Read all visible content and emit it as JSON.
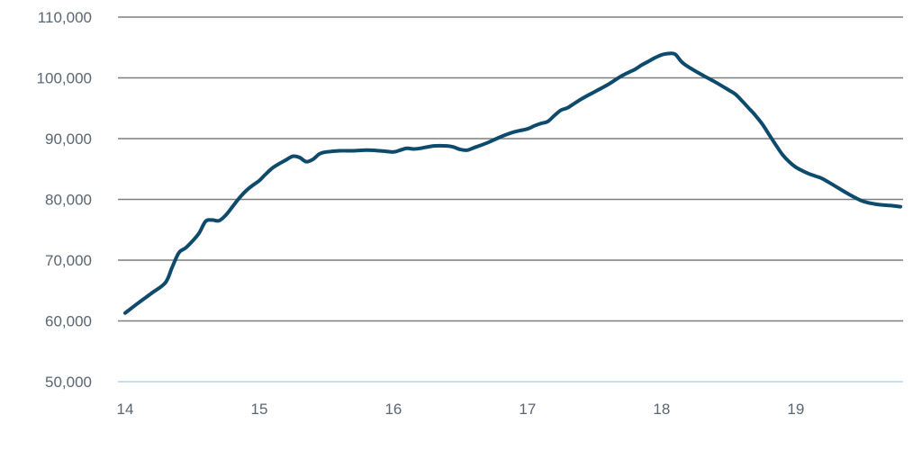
{
  "chart_data": {
    "type": "line",
    "title": "",
    "xlabel": "",
    "ylabel": "",
    "x_ticks": [
      14,
      15,
      16,
      17,
      18,
      19
    ],
    "x_tick_labels": [
      "14",
      "15",
      "16",
      "17",
      "18",
      "19"
    ],
    "y_ticks": [
      50000,
      60000,
      70000,
      80000,
      90000,
      100000,
      110000
    ],
    "y_tick_labels": [
      "50,000",
      "60,000",
      "70,000",
      "80,000",
      "90,000",
      "100,000",
      "110,000"
    ],
    "xlim": [
      14,
      19.8
    ],
    "ylim": [
      50000,
      110000
    ],
    "grid": "horizontal",
    "legend": "none",
    "colors": {
      "line": "#0d4a6b",
      "grid": "#7d7d7d",
      "baseline": "#b9d2e3",
      "text": "#5a6672"
    },
    "series": [
      {
        "x": [
          14.0,
          14.1,
          14.2,
          14.3,
          14.35,
          14.4,
          14.45,
          14.5,
          14.55,
          14.6,
          14.65,
          14.7,
          14.75,
          14.8,
          14.85,
          14.9,
          14.95,
          15.0,
          15.05,
          15.1,
          15.15,
          15.2,
          15.25,
          15.3,
          15.35,
          15.4,
          15.45,
          15.5,
          15.6,
          15.7,
          15.8,
          15.9,
          16.0,
          16.05,
          16.1,
          16.15,
          16.2,
          16.3,
          16.4,
          16.45,
          16.5,
          16.55,
          16.6,
          16.7,
          16.8,
          16.9,
          17.0,
          17.05,
          17.1,
          17.15,
          17.2,
          17.25,
          17.3,
          17.4,
          17.5,
          17.6,
          17.7,
          17.8,
          17.85,
          17.9,
          17.95,
          18.0,
          18.05,
          18.1,
          18.15,
          18.2,
          18.3,
          18.4,
          18.5,
          18.55,
          18.6,
          18.65,
          18.7,
          18.75,
          18.8,
          18.85,
          18.9,
          18.95,
          19.0,
          19.05,
          19.1,
          19.15,
          19.2,
          19.3,
          19.4,
          19.5,
          19.6,
          19.7,
          19.78
        ],
        "y": [
          61300,
          63000,
          64600,
          66300,
          68800,
          71200,
          72000,
          73100,
          74400,
          76400,
          76600,
          76500,
          77400,
          78800,
          80200,
          81400,
          82300,
          83100,
          84200,
          85200,
          85900,
          86500,
          87100,
          86900,
          86200,
          86600,
          87500,
          87800,
          88000,
          88000,
          88100,
          88000,
          87800,
          88100,
          88400,
          88300,
          88400,
          88800,
          88800,
          88600,
          88200,
          88100,
          88500,
          89300,
          90300,
          91100,
          91600,
          92100,
          92500,
          92800,
          93800,
          94700,
          95100,
          96500,
          97700,
          98900,
          100300,
          101400,
          102100,
          102700,
          103300,
          103800,
          104000,
          103900,
          102600,
          101800,
          100500,
          99300,
          98000,
          97300,
          96200,
          95000,
          93800,
          92400,
          90700,
          89000,
          87400,
          86200,
          85300,
          84700,
          84200,
          83800,
          83400,
          82100,
          80800,
          79700,
          79200,
          79000,
          78800
        ]
      }
    ]
  }
}
